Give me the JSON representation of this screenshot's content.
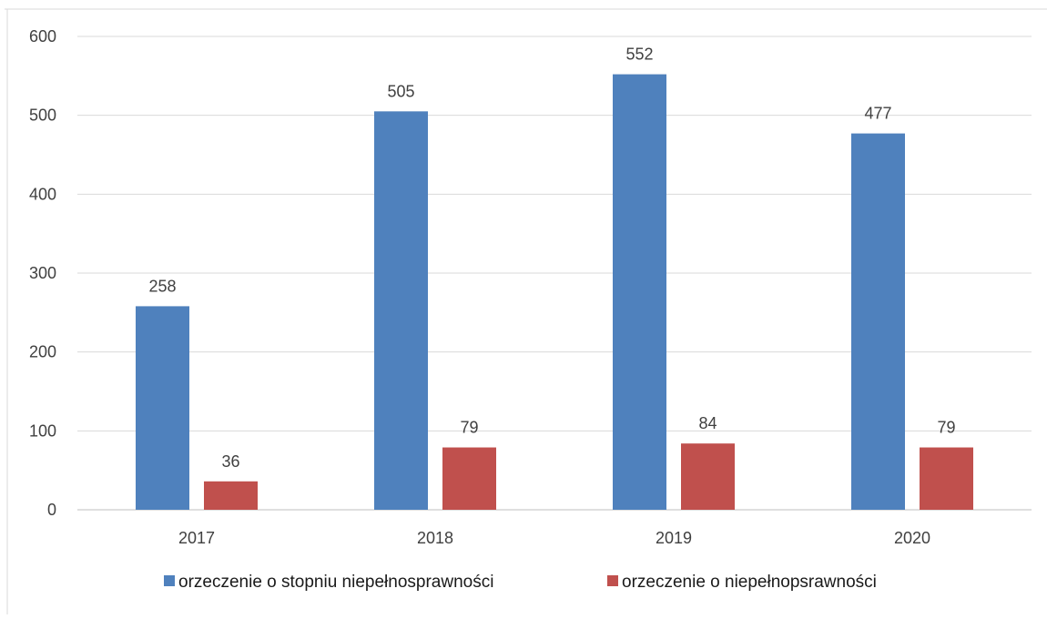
{
  "chart_data": {
    "type": "bar",
    "title": "",
    "xlabel": "",
    "ylabel": "",
    "categories": [
      "2017",
      "2018",
      "2019",
      "2020"
    ],
    "series": [
      {
        "name": "orzeczenie o stopniu niepełnosprawności",
        "color": "#4f81bd",
        "values": [
          258,
          505,
          552,
          477
        ]
      },
      {
        "name": "orzeczenie o niepełnopsrawności",
        "color": "#c0504d",
        "values": [
          36,
          79,
          84,
          79
        ]
      }
    ],
    "ylim": [
      0,
      600
    ],
    "yticks": [
      "0",
      "100",
      "200",
      "300",
      "400",
      "500",
      "600"
    ],
    "grid": true,
    "legend_position": "bottom",
    "gridline_color": "#d9d9d9",
    "axis_color": "#bfbfbf"
  }
}
